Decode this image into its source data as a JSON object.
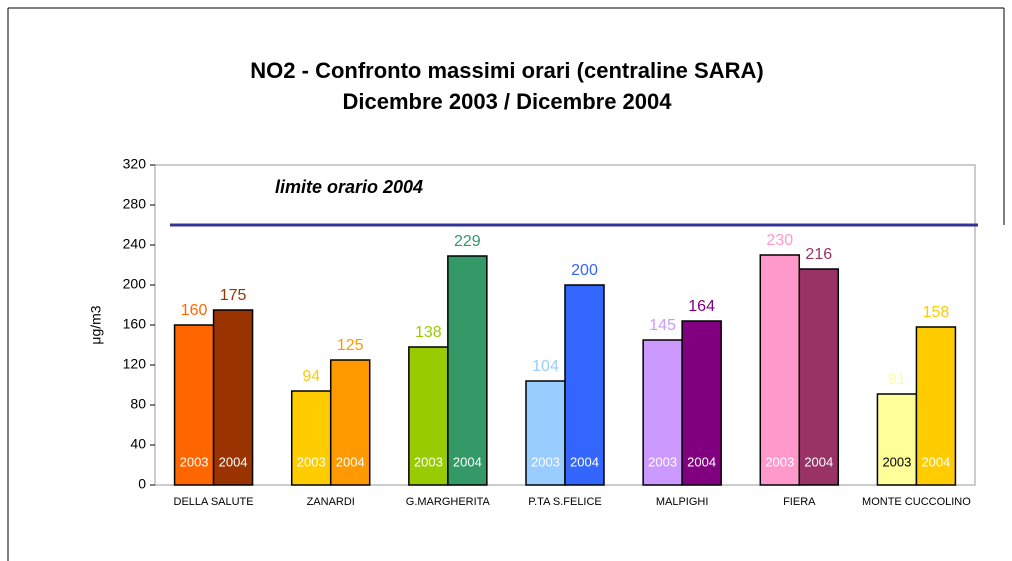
{
  "chart_data": {
    "type": "bar",
    "title": "NO2 - Confronto massimi orari (centraline SARA)",
    "subtitle": "Dicembre 2003 / Dicembre 2004",
    "y_label": "μg/m3",
    "categories": [
      "DELLA SALUTE",
      "ZANARDI",
      "G.MARGHERITA",
      "P.TA S.FELICE",
      "MALPIGHI",
      "FIERA",
      "MONTE CUCCOLINO"
    ],
    "series": [
      {
        "name": "2003",
        "colors": [
          "#ff6600",
          "#ffcc00",
          "#99cc00",
          "#99ccff",
          "#cc99ff",
          "#ff99cc",
          "#ffff99"
        ],
        "values": [
          160,
          94,
          138,
          104,
          145,
          230,
          91
        ]
      },
      {
        "name": "2004",
        "colors": [
          "#993300",
          "#ff9900",
          "#339966",
          "#3366ff",
          "#800080",
          "#993366",
          "#ffcc00"
        ],
        "values": [
          175,
          125,
          229,
          200,
          164,
          216,
          158
        ]
      }
    ],
    "ylim": [
      0,
      320
    ],
    "yticks": [
      0,
      40,
      80,
      120,
      160,
      200,
      240,
      280,
      320
    ],
    "limit": {
      "value": 260,
      "label": "limite orario 2004",
      "color": "#333399"
    }
  }
}
